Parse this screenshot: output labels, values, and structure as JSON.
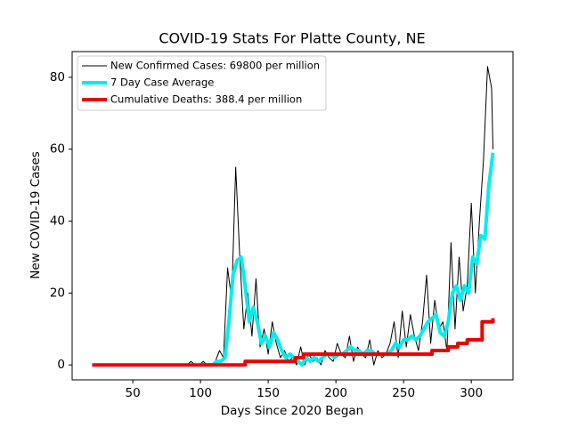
{
  "chart_data": {
    "type": "line",
    "title": "COVID-19 Stats For Platte County, NE",
    "xlabel": "Days Since 2020 Began",
    "ylabel": "New COVID-19 Cases",
    "xlim": [
      5.2,
      330.8
    ],
    "ylim": [
      -4.15,
      87.15
    ],
    "xticks": [
      50,
      100,
      150,
      200,
      250,
      300
    ],
    "yticks": [
      0,
      20,
      40,
      60,
      80
    ],
    "legend": "upper left",
    "series": [
      {
        "name": "New Confirmed Cases: 69800 per million",
        "color": "#000000",
        "width": 1,
        "step": false,
        "x": [
          90,
          93,
          96,
          99,
          102,
          105,
          108,
          111,
          114,
          117,
          120,
          123,
          126,
          129,
          132,
          135,
          138,
          141,
          144,
          147,
          150,
          153,
          156,
          159,
          162,
          165,
          168,
          171,
          174,
          177,
          180,
          183,
          186,
          189,
          192,
          195,
          198,
          201,
          204,
          207,
          210,
          213,
          216,
          219,
          222,
          225,
          228,
          231,
          234,
          237,
          240,
          243,
          246,
          249,
          252,
          255,
          258,
          261,
          264,
          267,
          270,
          273,
          276,
          279,
          282,
          285,
          288,
          291,
          294,
          297,
          300,
          303,
          306,
          309,
          312,
          315,
          316
        ],
        "values": [
          0,
          1,
          0,
          0,
          1,
          0,
          0,
          1,
          4,
          2,
          27,
          18,
          55,
          30,
          10,
          20,
          8,
          24,
          5,
          10,
          3,
          12,
          6,
          2,
          4,
          1,
          2,
          0,
          5,
          0,
          3,
          1,
          2,
          0,
          4,
          2,
          1,
          6,
          3,
          2,
          8,
          1,
          5,
          3,
          2,
          7,
          0,
          4,
          2,
          3,
          6,
          12,
          2,
          15,
          5,
          14,
          8,
          4,
          12,
          25,
          6,
          18,
          10,
          12,
          4,
          34,
          10,
          30,
          15,
          22,
          45,
          20,
          40,
          57,
          83,
          77,
          60
        ]
      },
      {
        "name": "7 Day Case Average",
        "color": "#00eeee",
        "width": 4,
        "step": false,
        "x": [
          100,
          103,
          106,
          109,
          112,
          115,
          118,
          121,
          124,
          127,
          130,
          133,
          136,
          139,
          142,
          145,
          148,
          151,
          154,
          157,
          160,
          163,
          166,
          169,
          172,
          175,
          178,
          181,
          184,
          187,
          190,
          193,
          196,
          199,
          202,
          205,
          208,
          211,
          214,
          217,
          220,
          223,
          226,
          229,
          232,
          235,
          238,
          241,
          244,
          247,
          250,
          253,
          256,
          259,
          262,
          265,
          268,
          271,
          274,
          277,
          280,
          283,
          286,
          289,
          292,
          295,
          298,
          301,
          304,
          307,
          310,
          313,
          316
        ],
        "values": [
          0,
          0,
          0,
          0,
          1,
          1,
          2,
          12,
          25,
          29,
          30,
          22,
          12,
          16,
          12,
          6,
          8,
          5,
          9,
          7,
          4,
          2,
          3,
          2,
          1,
          0,
          2,
          1,
          2,
          1,
          2,
          3,
          3,
          2,
          3,
          3,
          4,
          5,
          4,
          4,
          3,
          4,
          4,
          3,
          3,
          3,
          3,
          4,
          6,
          5,
          7,
          7,
          8,
          7,
          8,
          10,
          12,
          13,
          14,
          9,
          8,
          12,
          20,
          22,
          18,
          22,
          20,
          30,
          28,
          36,
          35,
          50,
          59
        ]
      },
      {
        "name": "Cumulative Deaths: 388.4 per million",
        "color": "#ee0000",
        "width": 4,
        "step": true,
        "x": [
          20,
          133,
          170,
          176,
          271,
          283,
          290,
          297,
          308,
          314,
          316
        ],
        "values": [
          0,
          1,
          2,
          3,
          4,
          5,
          6,
          7,
          12,
          12,
          13
        ]
      }
    ]
  }
}
